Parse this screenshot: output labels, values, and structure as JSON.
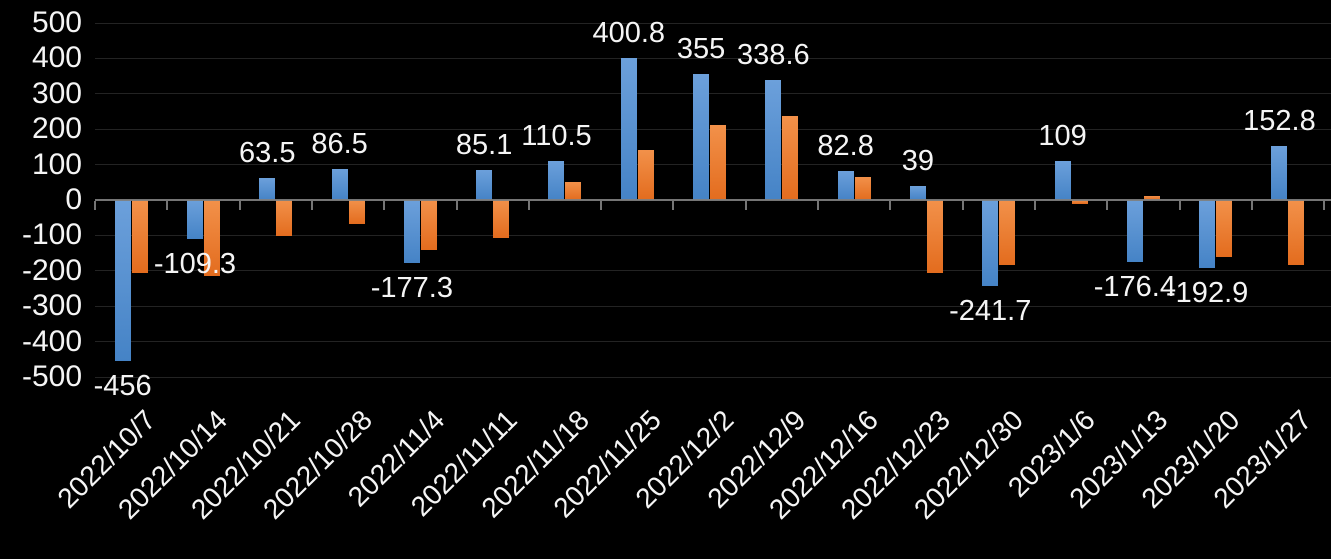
{
  "chart": {
    "background": "#000000",
    "text_color": "#F5F5F5",
    "gridline_color": "#232323",
    "axis_color": "#7F7F7F",
    "series_colors": {
      "blue_top": "#6CA0DB",
      "blue_bottom": "#4583C6",
      "orange_top": "#F2914A",
      "orange_bottom": "#E36C1E"
    }
  },
  "chart_data": {
    "type": "bar",
    "title": "",
    "xlabel": "",
    "ylabel": "",
    "categories": [
      "2022/10/7",
      "2022/10/14",
      "2022/10/21",
      "2022/10/28",
      "2022/11/4",
      "2022/11/11",
      "2022/11/18",
      "2022/11/25",
      "2022/12/2",
      "2022/12/9",
      "2022/12/16",
      "2022/12/23",
      "2022/12/30",
      "2023/1/6",
      "2023/1/13",
      "2023/1/20",
      "2023/1/27"
    ],
    "series": [
      {
        "name": "series-1-blue",
        "color": "blue",
        "labels_visible": true,
        "values": [
          -456,
          -109.3,
          63.5,
          86.5,
          -177.3,
          85.1,
          110.5,
          400.8,
          355,
          338.6,
          82.8,
          39,
          -241.7,
          109,
          -176.4,
          -192.9,
          152.8
        ],
        "data_labels": [
          "-456",
          "-109.3",
          "63.5",
          "86.5",
          "-177.3",
          "85.1",
          "110.5",
          "400.8",
          "355",
          "338.6",
          "82.8",
          "39",
          "-241.7",
          "109",
          "-176.4",
          "-192.9",
          "152.8"
        ]
      },
      {
        "name": "series-2-orange",
        "color": "orange",
        "labels_visible": false,
        "values": [
          -205,
          -215,
          -103,
          -68,
          -141,
          -107,
          50,
          141,
          212,
          237,
          66,
          -206,
          -184,
          -10,
          12,
          -160,
          -184
        ]
      }
    ],
    "ylim": [
      -500,
      500
    ],
    "yticks": [
      500,
      400,
      300,
      200,
      100,
      0,
      -100,
      -200,
      -300,
      -400,
      -500
    ],
    "grid": true,
    "legend": "none",
    "x_label_rotation_deg": 45
  }
}
